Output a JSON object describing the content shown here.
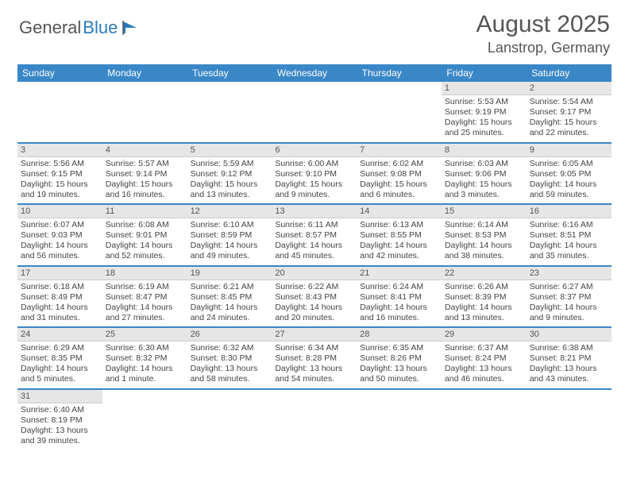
{
  "logo": {
    "text1": "General",
    "text2": "Blue"
  },
  "title": "August 2025",
  "location": "Lanstrop, Germany",
  "colors": {
    "header_bg": "#3a87c8",
    "header_text": "#ffffff",
    "daynum_bg": "#e6e6e6",
    "border": "#3a87c8",
    "text": "#444444",
    "logo_gray": "#555555",
    "logo_blue": "#2a7bbf"
  },
  "weekdays": [
    "Sunday",
    "Monday",
    "Tuesday",
    "Wednesday",
    "Thursday",
    "Friday",
    "Saturday"
  ],
  "weeks": [
    [
      null,
      null,
      null,
      null,
      null,
      {
        "n": "1",
        "sr": "5:53 AM",
        "ss": "9:19 PM",
        "dl": "15 hours and 25 minutes."
      },
      {
        "n": "2",
        "sr": "5:54 AM",
        "ss": "9:17 PM",
        "dl": "15 hours and 22 minutes."
      }
    ],
    [
      {
        "n": "3",
        "sr": "5:56 AM",
        "ss": "9:15 PM",
        "dl": "15 hours and 19 minutes."
      },
      {
        "n": "4",
        "sr": "5:57 AM",
        "ss": "9:14 PM",
        "dl": "15 hours and 16 minutes."
      },
      {
        "n": "5",
        "sr": "5:59 AM",
        "ss": "9:12 PM",
        "dl": "15 hours and 13 minutes."
      },
      {
        "n": "6",
        "sr": "6:00 AM",
        "ss": "9:10 PM",
        "dl": "15 hours and 9 minutes."
      },
      {
        "n": "7",
        "sr": "6:02 AM",
        "ss": "9:08 PM",
        "dl": "15 hours and 6 minutes."
      },
      {
        "n": "8",
        "sr": "6:03 AM",
        "ss": "9:06 PM",
        "dl": "15 hours and 3 minutes."
      },
      {
        "n": "9",
        "sr": "6:05 AM",
        "ss": "9:05 PM",
        "dl": "14 hours and 59 minutes."
      }
    ],
    [
      {
        "n": "10",
        "sr": "6:07 AM",
        "ss": "9:03 PM",
        "dl": "14 hours and 56 minutes."
      },
      {
        "n": "11",
        "sr": "6:08 AM",
        "ss": "9:01 PM",
        "dl": "14 hours and 52 minutes."
      },
      {
        "n": "12",
        "sr": "6:10 AM",
        "ss": "8:59 PM",
        "dl": "14 hours and 49 minutes."
      },
      {
        "n": "13",
        "sr": "6:11 AM",
        "ss": "8:57 PM",
        "dl": "14 hours and 45 minutes."
      },
      {
        "n": "14",
        "sr": "6:13 AM",
        "ss": "8:55 PM",
        "dl": "14 hours and 42 minutes."
      },
      {
        "n": "15",
        "sr": "6:14 AM",
        "ss": "8:53 PM",
        "dl": "14 hours and 38 minutes."
      },
      {
        "n": "16",
        "sr": "6:16 AM",
        "ss": "8:51 PM",
        "dl": "14 hours and 35 minutes."
      }
    ],
    [
      {
        "n": "17",
        "sr": "6:18 AM",
        "ss": "8:49 PM",
        "dl": "14 hours and 31 minutes."
      },
      {
        "n": "18",
        "sr": "6:19 AM",
        "ss": "8:47 PM",
        "dl": "14 hours and 27 minutes."
      },
      {
        "n": "19",
        "sr": "6:21 AM",
        "ss": "8:45 PM",
        "dl": "14 hours and 24 minutes."
      },
      {
        "n": "20",
        "sr": "6:22 AM",
        "ss": "8:43 PM",
        "dl": "14 hours and 20 minutes."
      },
      {
        "n": "21",
        "sr": "6:24 AM",
        "ss": "8:41 PM",
        "dl": "14 hours and 16 minutes."
      },
      {
        "n": "22",
        "sr": "6:26 AM",
        "ss": "8:39 PM",
        "dl": "14 hours and 13 minutes."
      },
      {
        "n": "23",
        "sr": "6:27 AM",
        "ss": "8:37 PM",
        "dl": "14 hours and 9 minutes."
      }
    ],
    [
      {
        "n": "24",
        "sr": "6:29 AM",
        "ss": "8:35 PM",
        "dl": "14 hours and 5 minutes."
      },
      {
        "n": "25",
        "sr": "6:30 AM",
        "ss": "8:32 PM",
        "dl": "14 hours and 1 minute."
      },
      {
        "n": "26",
        "sr": "6:32 AM",
        "ss": "8:30 PM",
        "dl": "13 hours and 58 minutes."
      },
      {
        "n": "27",
        "sr": "6:34 AM",
        "ss": "8:28 PM",
        "dl": "13 hours and 54 minutes."
      },
      {
        "n": "28",
        "sr": "6:35 AM",
        "ss": "8:26 PM",
        "dl": "13 hours and 50 minutes."
      },
      {
        "n": "29",
        "sr": "6:37 AM",
        "ss": "8:24 PM",
        "dl": "13 hours and 46 minutes."
      },
      {
        "n": "30",
        "sr": "6:38 AM",
        "ss": "8:21 PM",
        "dl": "13 hours and 43 minutes."
      }
    ],
    [
      {
        "n": "31",
        "sr": "6:40 AM",
        "ss": "8:19 PM",
        "dl": "13 hours and 39 minutes."
      },
      null,
      null,
      null,
      null,
      null,
      null
    ]
  ],
  "labels": {
    "sunrise": "Sunrise: ",
    "sunset": "Sunset: ",
    "daylight": "Daylight: "
  }
}
